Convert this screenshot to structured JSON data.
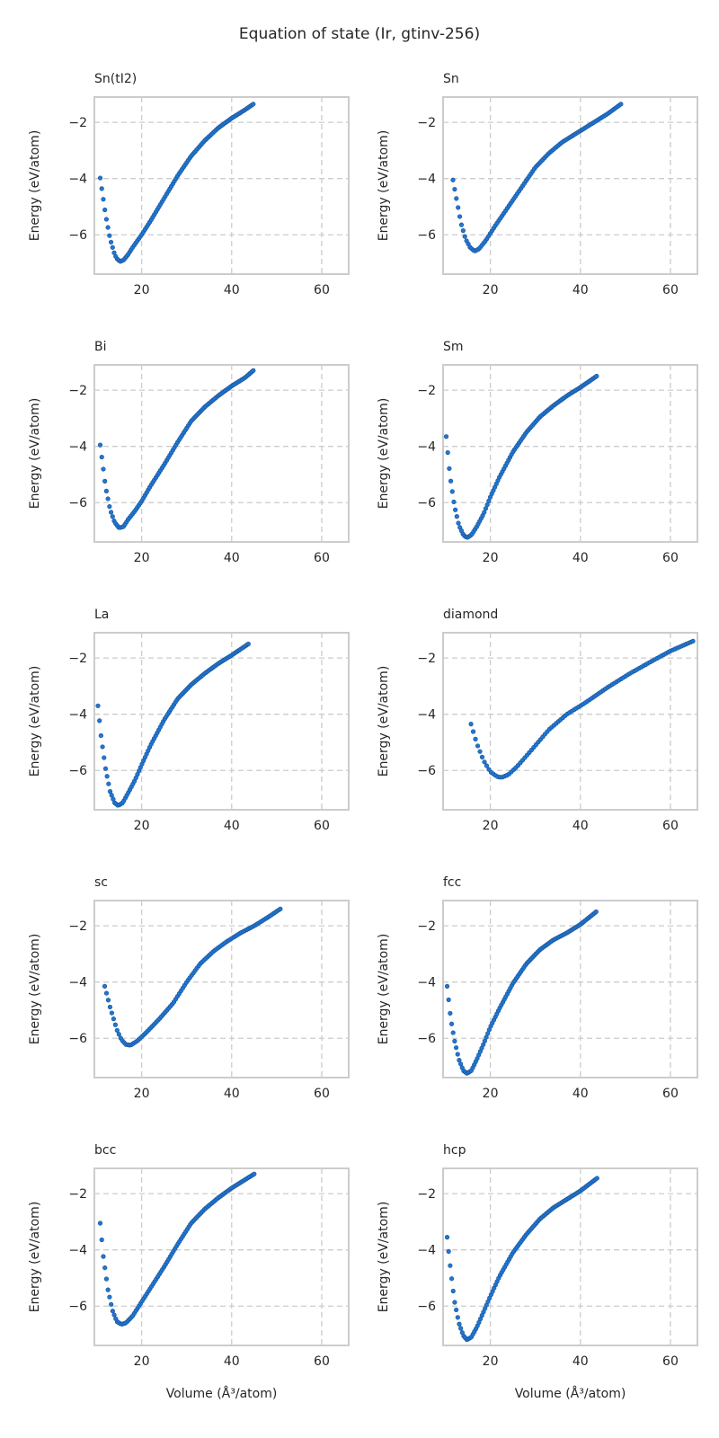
{
  "figure": {
    "title": "Equation of state (Ir, gtinv-256)",
    "marker_fill": "#1f77d4",
    "marker_edge": "#1a4f8f",
    "grid_color": "#cccccc",
    "spine_color": "#cccccc"
  },
  "chart_data": [
    {
      "type": "scatter",
      "title": "Sn(tI2)",
      "xlabel": "",
      "ylabel": "Energy (eV/atom)",
      "xlim": [
        9.5,
        66
      ],
      "ylim": [
        -7.4,
        -1.1
      ],
      "xticks": [
        20,
        40,
        60
      ],
      "yticks": [
        -2,
        -4,
        -6
      ],
      "grid": true,
      "x_start": 10.8,
      "x_end": 44.8,
      "n": 100,
      "anchors": [
        [
          10.8,
          -3.98
        ],
        [
          12,
          -5.3
        ],
        [
          13,
          -6.15
        ],
        [
          14,
          -6.7
        ],
        [
          14.5,
          -6.85
        ],
        [
          15.2,
          -6.95
        ],
        [
          16,
          -6.9
        ],
        [
          17,
          -6.7
        ],
        [
          18,
          -6.45
        ],
        [
          20,
          -6.0
        ],
        [
          22,
          -5.5
        ],
        [
          25,
          -4.7
        ],
        [
          28,
          -3.9
        ],
        [
          31,
          -3.2
        ],
        [
          34,
          -2.65
        ],
        [
          37,
          -2.2
        ],
        [
          40,
          -1.85
        ],
        [
          43,
          -1.55
        ],
        [
          44.8,
          -1.35
        ]
      ]
    },
    {
      "type": "scatter",
      "title": "Sn",
      "xlabel": "",
      "ylabel": "Energy (eV/atom)",
      "xlim": [
        9.5,
        66
      ],
      "ylim": [
        -7.4,
        -1.1
      ],
      "xticks": [
        20,
        40,
        60
      ],
      "yticks": [
        -2,
        -4,
        -6
      ],
      "grid": true,
      "x_start": 11.7,
      "x_end": 49.0,
      "n": 100,
      "anchors": [
        [
          11.7,
          -4.05
        ],
        [
          12.5,
          -4.75
        ],
        [
          13.5,
          -5.6
        ],
        [
          14.5,
          -6.15
        ],
        [
          15.5,
          -6.45
        ],
        [
          16.5,
          -6.58
        ],
        [
          17.5,
          -6.5
        ],
        [
          19,
          -6.2
        ],
        [
          21,
          -5.7
        ],
        [
          24,
          -5.0
        ],
        [
          27,
          -4.3
        ],
        [
          30,
          -3.6
        ],
        [
          33,
          -3.1
        ],
        [
          36,
          -2.7
        ],
        [
          40,
          -2.3
        ],
        [
          44,
          -1.9
        ],
        [
          46,
          -1.7
        ],
        [
          49,
          -1.35
        ]
      ]
    },
    {
      "type": "scatter",
      "title": "Bi",
      "xlabel": "",
      "ylabel": "Energy (eV/atom)",
      "xlim": [
        9.5,
        66
      ],
      "ylim": [
        -7.4,
        -1.1
      ],
      "xticks": [
        20,
        40,
        60
      ],
      "yticks": [
        -2,
        -4,
        -6
      ],
      "grid": true,
      "x_start": 10.8,
      "x_end": 44.8,
      "n": 100,
      "anchors": [
        [
          10.8,
          -3.95
        ],
        [
          12,
          -5.45
        ],
        [
          13,
          -6.25
        ],
        [
          14,
          -6.7
        ],
        [
          15,
          -6.9
        ],
        [
          16,
          -6.85
        ],
        [
          17,
          -6.6
        ],
        [
          18.5,
          -6.3
        ],
        [
          20,
          -5.95
        ],
        [
          22,
          -5.4
        ],
        [
          25,
          -4.65
        ],
        [
          28,
          -3.85
        ],
        [
          31,
          -3.1
        ],
        [
          34,
          -2.6
        ],
        [
          37,
          -2.2
        ],
        [
          40,
          -1.85
        ],
        [
          43,
          -1.55
        ],
        [
          44.8,
          -1.3
        ]
      ]
    },
    {
      "type": "scatter",
      "title": "Sm",
      "xlabel": "",
      "ylabel": "Energy (eV/atom)",
      "xlim": [
        9.5,
        66
      ],
      "ylim": [
        -7.4,
        -1.1
      ],
      "xticks": [
        20,
        40,
        60
      ],
      "yticks": [
        -2,
        -4,
        -6
      ],
      "grid": true,
      "x_start": 10.2,
      "x_end": 43.6,
      "n": 100,
      "anchors": [
        [
          10.2,
          -3.65
        ],
        [
          11,
          -5.0
        ],
        [
          12,
          -6.1
        ],
        [
          13,
          -6.8
        ],
        [
          14,
          -7.15
        ],
        [
          14.8,
          -7.25
        ],
        [
          15.8,
          -7.15
        ],
        [
          17,
          -6.85
        ],
        [
          18.5,
          -6.4
        ],
        [
          20,
          -5.8
        ],
        [
          22,
          -5.1
        ],
        [
          25,
          -4.2
        ],
        [
          28,
          -3.5
        ],
        [
          31,
          -2.95
        ],
        [
          34,
          -2.55
        ],
        [
          37,
          -2.2
        ],
        [
          40,
          -1.9
        ],
        [
          43.6,
          -1.5
        ]
      ]
    },
    {
      "type": "scatter",
      "title": "La",
      "xlabel": "",
      "ylabel": "Energy (eV/atom)",
      "xlim": [
        9.5,
        66
      ],
      "ylim": [
        -7.4,
        -1.1
      ],
      "xticks": [
        20,
        40,
        60
      ],
      "yticks": [
        -2,
        -4,
        -6
      ],
      "grid": true,
      "x_start": 10.3,
      "x_end": 43.7,
      "n": 100,
      "anchors": [
        [
          10.3,
          -3.7
        ],
        [
          11,
          -4.8
        ],
        [
          12,
          -5.95
        ],
        [
          13,
          -6.75
        ],
        [
          14,
          -7.15
        ],
        [
          14.8,
          -7.25
        ],
        [
          15.8,
          -7.15
        ],
        [
          17,
          -6.8
        ],
        [
          18.5,
          -6.35
        ],
        [
          20,
          -5.8
        ],
        [
          22,
          -5.1
        ],
        [
          25,
          -4.2
        ],
        [
          28,
          -3.45
        ],
        [
          31,
          -2.95
        ],
        [
          34,
          -2.55
        ],
        [
          37,
          -2.2
        ],
        [
          40,
          -1.9
        ],
        [
          43.7,
          -1.5
        ]
      ]
    },
    {
      "type": "scatter",
      "title": "diamond",
      "xlabel": "",
      "ylabel": "Energy (eV/atom)",
      "xlim": [
        9.5,
        66
      ],
      "ylim": [
        -7.4,
        -1.1
      ],
      "xticks": [
        20,
        40,
        60
      ],
      "yticks": [
        -2,
        -4,
        -6
      ],
      "grid": true,
      "x_start": 15.7,
      "x_end": 65.0,
      "n": 100,
      "anchors": [
        [
          15.7,
          -4.35
        ],
        [
          17,
          -5.05
        ],
        [
          18.5,
          -5.65
        ],
        [
          20,
          -6.05
        ],
        [
          21.5,
          -6.22
        ],
        [
          22.5,
          -6.25
        ],
        [
          24,
          -6.15
        ],
        [
          26,
          -5.85
        ],
        [
          29,
          -5.3
        ],
        [
          33,
          -4.55
        ],
        [
          37,
          -4.0
        ],
        [
          41,
          -3.6
        ],
        [
          46,
          -3.05
        ],
        [
          51,
          -2.55
        ],
        [
          56,
          -2.1
        ],
        [
          60,
          -1.75
        ],
        [
          65,
          -1.4
        ]
      ]
    },
    {
      "type": "scatter",
      "title": "sc",
      "xlabel": "",
      "ylabel": "Energy (eV/atom)",
      "xlim": [
        9.5,
        66
      ],
      "ylim": [
        -7.4,
        -1.1
      ],
      "xticks": [
        20,
        40,
        60
      ],
      "yticks": [
        -2,
        -4,
        -6
      ],
      "grid": true,
      "x_start": 11.8,
      "x_end": 50.8,
      "n": 100,
      "anchors": [
        [
          11.8,
          -4.15
        ],
        [
          13,
          -4.9
        ],
        [
          14.5,
          -5.7
        ],
        [
          15.5,
          -6.05
        ],
        [
          16.5,
          -6.22
        ],
        [
          17.5,
          -6.25
        ],
        [
          19,
          -6.1
        ],
        [
          21,
          -5.8
        ],
        [
          24,
          -5.3
        ],
        [
          27,
          -4.75
        ],
        [
          30,
          -4.0
        ],
        [
          33,
          -3.35
        ],
        [
          36,
          -2.9
        ],
        [
          39,
          -2.55
        ],
        [
          42,
          -2.25
        ],
        [
          45,
          -2.0
        ],
        [
          48,
          -1.7
        ],
        [
          50.8,
          -1.4
        ]
      ]
    },
    {
      "type": "scatter",
      "title": "fcc",
      "xlabel": "",
      "ylabel": "Energy (eV/atom)",
      "xlim": [
        9.5,
        66
      ],
      "ylim": [
        -7.4,
        -1.1
      ],
      "xticks": [
        20,
        40,
        60
      ],
      "yticks": [
        -2,
        -4,
        -6
      ],
      "grid": true,
      "x_start": 10.4,
      "x_end": 43.5,
      "n": 100,
      "anchors": [
        [
          10.4,
          -4.15
        ],
        [
          11.2,
          -5.3
        ],
        [
          12,
          -6.05
        ],
        [
          13,
          -6.75
        ],
        [
          14,
          -7.15
        ],
        [
          14.8,
          -7.25
        ],
        [
          15.8,
          -7.15
        ],
        [
          17,
          -6.75
        ],
        [
          18.5,
          -6.2
        ],
        [
          20,
          -5.6
        ],
        [
          22,
          -4.95
        ],
        [
          25,
          -4.05
        ],
        [
          28,
          -3.35
        ],
        [
          31,
          -2.85
        ],
        [
          34,
          -2.5
        ],
        [
          37,
          -2.25
        ],
        [
          40,
          -1.95
        ],
        [
          43.5,
          -1.5
        ]
      ]
    },
    {
      "type": "scatter",
      "title": "bcc",
      "xlabel": "Volume (Å³/atom)",
      "ylabel": "Energy (eV/atom)",
      "xlim": [
        9.5,
        66
      ],
      "ylim": [
        -7.4,
        -1.1
      ],
      "xticks": [
        20,
        40,
        60
      ],
      "yticks": [
        -2,
        -4,
        -6
      ],
      "grid": true,
      "x_start": 10.8,
      "x_end": 45.0,
      "n": 100,
      "anchors": [
        [
          10.8,
          -3.05
        ],
        [
          11.5,
          -4.25
        ],
        [
          12.5,
          -5.4
        ],
        [
          13.5,
          -6.15
        ],
        [
          14.5,
          -6.55
        ],
        [
          15.5,
          -6.65
        ],
        [
          16.5,
          -6.6
        ],
        [
          18,
          -6.35
        ],
        [
          20,
          -5.85
        ],
        [
          22,
          -5.35
        ],
        [
          25,
          -4.6
        ],
        [
          28,
          -3.8
        ],
        [
          31,
          -3.05
        ],
        [
          34,
          -2.55
        ],
        [
          37,
          -2.15
        ],
        [
          40,
          -1.8
        ],
        [
          43,
          -1.5
        ],
        [
          45,
          -1.3
        ]
      ]
    },
    {
      "type": "scatter",
      "title": "hcp",
      "xlabel": "Volume (Å³/atom)",
      "ylabel": "Energy (eV/atom)",
      "xlim": [
        9.5,
        66
      ],
      "ylim": [
        -7.4,
        -1.1
      ],
      "xticks": [
        20,
        40,
        60
      ],
      "yticks": [
        -2,
        -4,
        -6
      ],
      "grid": true,
      "x_start": 10.4,
      "x_end": 43.7,
      "n": 100,
      "anchors": [
        [
          10.4,
          -3.55
        ],
        [
          11.2,
          -4.75
        ],
        [
          12,
          -5.8
        ],
        [
          13,
          -6.6
        ],
        [
          14,
          -7.05
        ],
        [
          14.8,
          -7.2
        ],
        [
          15.8,
          -7.1
        ],
        [
          17,
          -6.75
        ],
        [
          18.5,
          -6.2
        ],
        [
          20,
          -5.65
        ],
        [
          22,
          -4.95
        ],
        [
          25,
          -4.1
        ],
        [
          28,
          -3.45
        ],
        [
          31,
          -2.9
        ],
        [
          34,
          -2.5
        ],
        [
          37,
          -2.2
        ],
        [
          40,
          -1.9
        ],
        [
          43.7,
          -1.45
        ]
      ]
    }
  ]
}
